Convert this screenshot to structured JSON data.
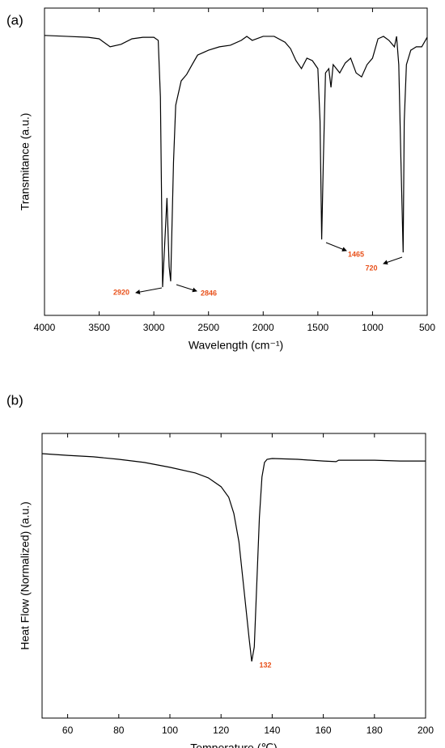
{
  "chart_data": [
    {
      "type": "line",
      "panel": "(a)",
      "x_label": "Wavelength (cm⁻¹)",
      "y_label": "Transmitance (a.u.)",
      "xlim": [
        4000,
        500
      ],
      "xticks": [
        4000,
        3500,
        3000,
        2500,
        2000,
        1500,
        1000,
        500
      ],
      "ylim": [
        0,
        100
      ],
      "color": "#000000",
      "annotation_color": "#e8501a",
      "annotations": [
        "2920",
        "2846",
        "1465",
        "720"
      ],
      "x": [
        4000,
        3800,
        3600,
        3500,
        3400,
        3300,
        3200,
        3100,
        3000,
        2960,
        2940,
        2920,
        2900,
        2880,
        2860,
        2846,
        2820,
        2800,
        2750,
        2700,
        2650,
        2600,
        2500,
        2400,
        2300,
        2200,
        2150,
        2100,
        2000,
        1900,
        1800,
        1750,
        1700,
        1650,
        1600,
        1550,
        1500,
        1480,
        1465,
        1450,
        1430,
        1400,
        1380,
        1360,
        1300,
        1250,
        1200,
        1150,
        1100,
        1050,
        1000,
        950,
        900,
        850,
        800,
        780,
        760,
        740,
        720,
        710,
        690,
        650,
        600,
        550,
        500
      ],
      "values": [
        91.1,
        90.8,
        90.5,
        90.0,
        87.4,
        88.2,
        90.0,
        90.5,
        90.5,
        89.5,
        71.1,
        9.2,
        23.7,
        38.2,
        15.8,
        11.1,
        50.0,
        68.4,
        76.3,
        78.4,
        81.6,
        84.7,
        86.3,
        87.4,
        87.9,
        89.5,
        90.8,
        89.5,
        90.8,
        90.8,
        88.9,
        86.8,
        82.9,
        80.3,
        83.7,
        82.9,
        80.3,
        63.2,
        24.7,
        50.0,
        78.9,
        80.3,
        74.2,
        81.6,
        78.9,
        82.1,
        83.7,
        78.9,
        77.6,
        81.6,
        83.7,
        90.0,
        90.8,
        89.5,
        87.4,
        90.8,
        81.6,
        50.0,
        20.5,
        63.2,
        81.6,
        86.3,
        87.4,
        87.4,
        90.5
      ]
    },
    {
      "type": "line",
      "panel": "(b)",
      "x_label": "Temperature (℃)",
      "y_label": "Heat Flow (Normalized) (a.u.)",
      "xlim": [
        50,
        200
      ],
      "xticks": [
        60,
        80,
        100,
        120,
        140,
        160,
        180,
        200
      ],
      "ylim": [
        0,
        100
      ],
      "color": "#000000",
      "annotation_color": "#e8501a",
      "annotations": [
        "132"
      ],
      "x": [
        50,
        60,
        70,
        80,
        90,
        100,
        110,
        115,
        120,
        123,
        125,
        127,
        129,
        131,
        132,
        133,
        134,
        135,
        136,
        137,
        138,
        140,
        150,
        160,
        165,
        166,
        170,
        180,
        190,
        200
      ],
      "values": [
        92.9,
        92.3,
        91.8,
        90.9,
        89.8,
        88.1,
        86.1,
        84.4,
        81.3,
        77.6,
        71.9,
        61.9,
        44.9,
        27.8,
        19.9,
        25.0,
        47.7,
        70.5,
        84.7,
        89.8,
        90.9,
        91.2,
        90.9,
        90.3,
        90.1,
        90.6,
        90.6,
        90.6,
        90.3,
        90.3
      ]
    }
  ]
}
